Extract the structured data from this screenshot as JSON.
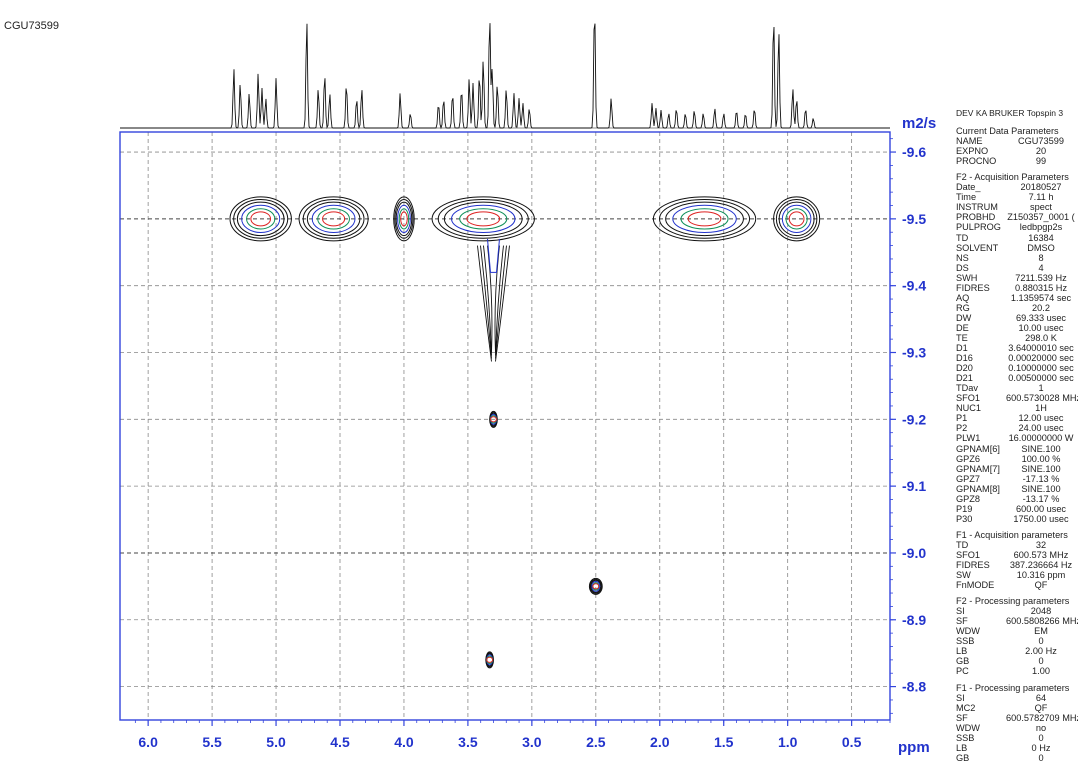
{
  "sample_id": "CGU73599",
  "spectrometer_label": "DEV KA BRUKER Topspin 3",
  "chart_data": {
    "type": "contour",
    "x_axis": {
      "unit_label": "ppm",
      "ticks": [
        "6.0",
        "5.5",
        "5.0",
        "4.5",
        "4.0",
        "3.5",
        "3.0",
        "2.5",
        "2.0",
        "1.5",
        "1.0",
        "0.5"
      ],
      "range": [
        6.22,
        0.2
      ],
      "reversed": true,
      "grid": "dashed"
    },
    "y_axis": {
      "unit_label": "m2/s",
      "ticks": [
        "-9.6",
        "-9.5",
        "-9.4",
        "-9.3",
        "-9.2",
        "-9.1",
        "-9.0",
        "-8.9",
        "-8.8"
      ],
      "range": [
        -9.63,
        -8.75
      ],
      "position": "right",
      "grid": "dashed"
    },
    "projection_peaks_ppm": [
      5.33,
      5.28,
      5.21,
      5.14,
      5.11,
      5.08,
      5.0,
      4.76,
      4.67,
      4.62,
      4.58,
      4.45,
      4.37,
      4.33,
      4.03,
      3.95,
      3.73,
      3.69,
      3.62,
      3.55,
      3.49,
      3.46,
      3.41,
      3.38,
      3.33,
      3.31,
      3.27,
      3.2,
      3.14,
      3.1,
      3.07,
      3.02,
      2.51,
      2.38,
      2.06,
      2.03,
      1.99,
      1.93,
      1.87,
      1.8,
      1.73,
      1.66,
      1.57,
      1.5,
      1.4,
      1.33,
      1.26,
      1.11,
      1.07,
      0.96,
      0.93,
      0.86,
      0.8
    ],
    "cross_peaks": [
      {
        "ppm_center": 5.12,
        "ppm_halfwidth": 0.24,
        "log_D": -9.5
      },
      {
        "ppm_center": 4.55,
        "ppm_halfwidth": 0.27,
        "log_D": -9.5
      },
      {
        "ppm_center": 4.0,
        "ppm_halfwidth": 0.08,
        "log_D": -9.5
      },
      {
        "ppm_center": 3.38,
        "ppm_halfwidth": 0.4,
        "log_D": -9.5
      },
      {
        "ppm_center": 1.65,
        "ppm_halfwidth": 0.4,
        "log_D": -9.5
      },
      {
        "ppm_center": 0.93,
        "ppm_halfwidth": 0.18,
        "log_D": -9.5
      },
      {
        "ppm_center": 3.3,
        "ppm_halfwidth": 0.03,
        "log_D": -9.2
      },
      {
        "ppm_center": 2.5,
        "ppm_halfwidth": 0.05,
        "log_D": -8.95
      },
      {
        "ppm_center": 3.33,
        "ppm_halfwidth": 0.03,
        "log_D": -8.84
      }
    ]
  },
  "params": [
    {
      "header": "Current Data Parameters",
      "rows": [
        [
          "NAME",
          "CGU73599"
        ],
        [
          "EXPNO",
          "20"
        ],
        [
          "PROCNO",
          "99"
        ]
      ]
    },
    {
      "header": "F2 - Acquisition Parameters",
      "rows": [
        [
          "Date_",
          "20180527"
        ],
        [
          "Time",
          "7.11 h"
        ],
        [
          "INSTRUM",
          "spect"
        ],
        [
          "PROBHD",
          "Z150357_0001 ("
        ],
        [
          "PULPROG",
          "ledbpgp2s"
        ],
        [
          "TD",
          "16384"
        ],
        [
          "SOLVENT",
          "DMSO"
        ],
        [
          "NS",
          "8"
        ],
        [
          "DS",
          "4"
        ],
        [
          "SWH",
          "7211.539 Hz"
        ],
        [
          "FIDRES",
          "0.880315 Hz"
        ],
        [
          "AQ",
          "1.1359574 sec"
        ],
        [
          "RG",
          "20.2"
        ],
        [
          "DW",
          "69.333 usec"
        ],
        [
          "DE",
          "10.00 usec"
        ],
        [
          "TE",
          "298.0 K"
        ],
        [
          "D1",
          "3.64000010 sec"
        ],
        [
          "D16",
          "0.00020000 sec"
        ],
        [
          "D20",
          "0.10000000 sec"
        ],
        [
          "D21",
          "0.00500000 sec"
        ],
        [
          "TDav",
          "1"
        ],
        [
          "SFO1",
          "600.5730028 MHz"
        ],
        [
          "NUC1",
          "1H"
        ],
        [
          "P1",
          "12.00 usec"
        ],
        [
          "P2",
          "24.00 usec"
        ],
        [
          "PLW1",
          "16.00000000 W"
        ],
        [
          "GPNAM[6]",
          "SINE.100"
        ],
        [
          "GPZ6",
          "100.00 %"
        ],
        [
          "GPNAM[7]",
          "SINE.100"
        ],
        [
          "GPZ7",
          "-17.13 %"
        ],
        [
          "GPNAM[8]",
          "SINE.100"
        ],
        [
          "GPZ8",
          "-13.17 %"
        ],
        [
          "P19",
          "600.00 usec"
        ],
        [
          "P30",
          "1750.00 usec"
        ]
      ]
    },
    {
      "header": "F1 - Acquisition parameters",
      "rows": [
        [
          "TD",
          "32"
        ],
        [
          "SFO1",
          "600.573 MHz"
        ],
        [
          "FIDRES",
          "387.236664 Hz"
        ],
        [
          "SW",
          "10.316 ppm"
        ],
        [
          "FnMODE",
          "QF"
        ]
      ]
    },
    {
      "header": "F2 - Processing parameters",
      "rows": [
        [
          "SI",
          "2048"
        ],
        [
          "SF",
          "600.5808266 MHz"
        ],
        [
          "WDW",
          "EM"
        ],
        [
          "SSB",
          "0"
        ],
        [
          "LB",
          "2.00 Hz"
        ],
        [
          "GB",
          "0"
        ],
        [
          "PC",
          "1.00"
        ]
      ]
    },
    {
      "header": "F1 - Processing parameters",
      "rows": [
        [
          "SI",
          "64"
        ],
        [
          "MC2",
          "QF"
        ],
        [
          "SF",
          "600.5782709 MHz"
        ],
        [
          "WDW",
          "no"
        ],
        [
          "SSB",
          "0"
        ],
        [
          "LB",
          "0 Hz"
        ],
        [
          "GB",
          "0"
        ]
      ]
    }
  ]
}
